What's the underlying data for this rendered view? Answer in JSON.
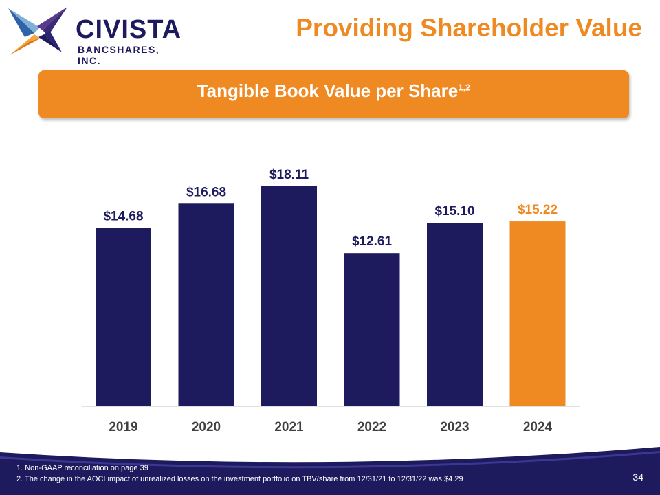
{
  "header": {
    "logo_name": "CIVISTA",
    "logo_subtitle": "BANCSHARES, INC.",
    "title": "Providing Shareholder Value"
  },
  "banner": {
    "text": "Tangible Book Value per Share",
    "superscript": "1,2"
  },
  "colors": {
    "navy": "#1e1a5e",
    "orange": "#ef8a23",
    "white": "#ffffff"
  },
  "chart_data": {
    "type": "bar",
    "title": "Tangible Book Value per Share",
    "categories": [
      "2019",
      "2020",
      "2021",
      "2022",
      "2023",
      "2024"
    ],
    "values": [
      14.68,
      16.68,
      18.11,
      12.61,
      15.1,
      15.22
    ],
    "data_labels": [
      "$14.68",
      "$16.68",
      "$18.11",
      "$12.61",
      "$15.10",
      "$15.22"
    ],
    "highlight_index": 5,
    "xlabel": "",
    "ylabel": "",
    "ylim": [
      0,
      18.11
    ],
    "grid": false
  },
  "footer": {
    "note_1": "1. Non-GAAP reconciliation on page 39",
    "note_2": "2.  The change in the AOCI impact of unrealized losses on the investment portfolio on TBV/share from 12/31/21 to 12/31/22 was $4.29",
    "page_number": "34"
  }
}
